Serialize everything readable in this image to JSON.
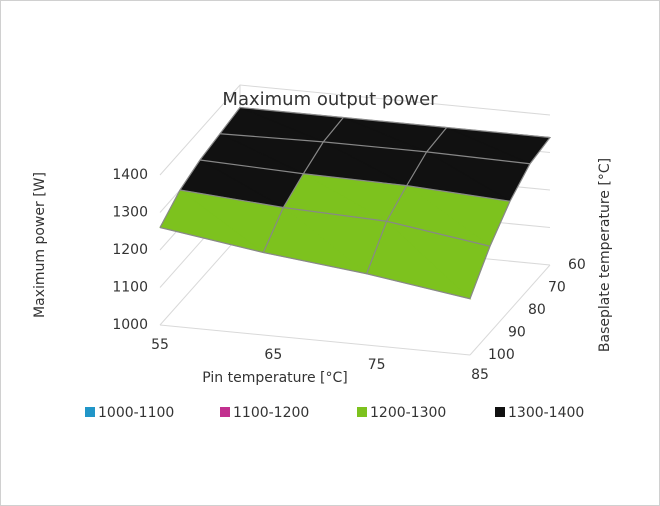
{
  "chart_data": {
    "type": "surface3d",
    "title": "Maximum output power",
    "z_axis_label": "Maximum power [W]",
    "x_axis_label": "Pin temperature [°C]",
    "y_axis_label": "Baseplate temperature [°C]",
    "categories": [
      55,
      65,
      75,
      85
    ],
    "depth_categories": [
      60,
      70,
      80,
      90,
      100
    ],
    "values": [
      [
        1340,
        1340,
        1340,
        1340
      ],
      [
        1330,
        1335,
        1335,
        1330
      ],
      [
        1320,
        1310,
        1305,
        1290
      ],
      [
        1300,
        1280,
        1270,
        1230
      ],
      [
        1260,
        1220,
        1190,
        1150
      ]
    ],
    "zlim": [
      1000,
      1400
    ],
    "zticks": [
      1000,
      1100,
      1200,
      1300,
      1400
    ],
    "bands": [
      {
        "name": "1000-1100",
        "color": "#2196c8"
      },
      {
        "name": "1100-1200",
        "color": "#c2308f"
      },
      {
        "name": "1200-1300",
        "color": "#7dc21e"
      },
      {
        "name": "1300-1400",
        "color": "#111111"
      }
    ],
    "grid": true,
    "legend": "bottom"
  }
}
